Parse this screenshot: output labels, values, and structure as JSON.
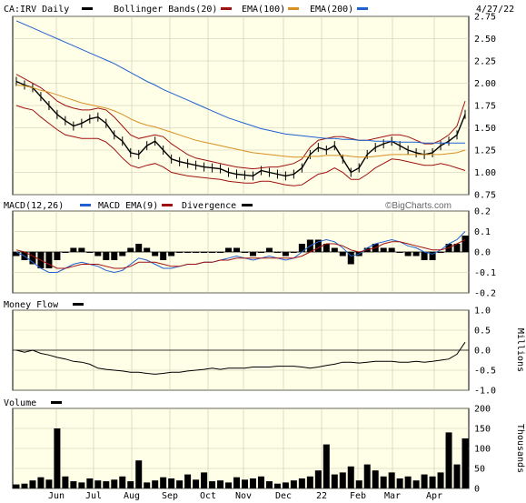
{
  "header": {
    "symbol_label": "CA:IRV Daily",
    "bb_label": "Bollinger Bands(20)",
    "ema100_label": "EMA(100)",
    "ema200_label": "EMA(200)",
    "date": "4/27/22"
  },
  "macd_header": {
    "macd_label": "MACD(12,26)",
    "ema_label": "MACD EMA(9)",
    "div_label": "Divergence"
  },
  "watermark": "©BigCharts.com",
  "mf_header": {
    "label": "Money Flow"
  },
  "mf_unit": "Millions",
  "vol_header": {
    "label": "Volume"
  },
  "vol_unit": "Thousands",
  "x_labels": [
    "Jun",
    "Jul",
    "Aug",
    "Sep",
    "Oct",
    "Nov",
    "Dec",
    "22",
    "Feb",
    "Mar",
    "Apr"
  ],
  "colors": {
    "bg": "#ffffe7",
    "price": "#000000",
    "bollinger": "#a01010",
    "ema100": "#d89020",
    "ema200": "#2060d0",
    "macd": "#2060d0",
    "macd_ema": "#a01010",
    "grid": "#c8c8b0"
  },
  "chart_data": [
    {
      "type": "line",
      "title": "CA:IRV Daily",
      "series": [
        {
          "name": "CA:IRV Daily",
          "values": [
            2.02,
            1.98,
            1.95,
            1.85,
            1.75,
            1.65,
            1.58,
            1.52,
            1.55,
            1.6,
            1.62,
            1.55,
            1.42,
            1.35,
            1.22,
            1.2,
            1.3,
            1.35,
            1.25,
            1.15,
            1.12,
            1.1,
            1.08,
            1.06,
            1.05,
            1.04,
            1.0,
            0.98,
            0.97,
            0.96,
            1.02,
            1.0,
            0.98,
            0.96,
            0.98,
            1.05,
            1.2,
            1.28,
            1.25,
            1.3,
            1.15,
            1.0,
            1.05,
            1.2,
            1.28,
            1.32,
            1.35,
            1.3,
            1.25,
            1.22,
            1.2,
            1.22,
            1.3,
            1.35,
            1.42,
            1.65
          ]
        },
        {
          "name": "Bollinger Bands(20) upper",
          "values": [
            2.1,
            2.05,
            2.0,
            1.95,
            1.88,
            1.8,
            1.75,
            1.72,
            1.7,
            1.7,
            1.72,
            1.7,
            1.62,
            1.52,
            1.42,
            1.38,
            1.4,
            1.42,
            1.4,
            1.32,
            1.26,
            1.2,
            1.16,
            1.14,
            1.12,
            1.1,
            1.08,
            1.06,
            1.05,
            1.04,
            1.05,
            1.06,
            1.06,
            1.08,
            1.1,
            1.15,
            1.28,
            1.36,
            1.38,
            1.4,
            1.4,
            1.38,
            1.36,
            1.36,
            1.38,
            1.4,
            1.42,
            1.42,
            1.4,
            1.36,
            1.32,
            1.32,
            1.36,
            1.42,
            1.52,
            1.8
          ]
        },
        {
          "name": "Bollinger Bands(20) lower",
          "values": [
            1.75,
            1.72,
            1.7,
            1.62,
            1.55,
            1.48,
            1.42,
            1.4,
            1.38,
            1.38,
            1.38,
            1.34,
            1.26,
            1.16,
            1.08,
            1.05,
            1.08,
            1.1,
            1.06,
            1.0,
            0.98,
            0.96,
            0.95,
            0.94,
            0.93,
            0.92,
            0.9,
            0.89,
            0.88,
            0.88,
            0.9,
            0.9,
            0.88,
            0.86,
            0.85,
            0.86,
            0.92,
            0.98,
            1.0,
            1.05,
            1.0,
            0.92,
            0.92,
            0.98,
            1.05,
            1.1,
            1.15,
            1.14,
            1.12,
            1.1,
            1.08,
            1.08,
            1.1,
            1.08,
            1.05,
            1.02
          ]
        },
        {
          "name": "EMA(100)",
          "values": [
            1.98,
            1.97,
            1.95,
            1.92,
            1.9,
            1.87,
            1.84,
            1.81,
            1.78,
            1.76,
            1.74,
            1.72,
            1.69,
            1.65,
            1.6,
            1.56,
            1.53,
            1.51,
            1.48,
            1.45,
            1.42,
            1.39,
            1.36,
            1.34,
            1.32,
            1.3,
            1.28,
            1.26,
            1.24,
            1.22,
            1.21,
            1.2,
            1.19,
            1.18,
            1.17,
            1.17,
            1.18,
            1.18,
            1.19,
            1.19,
            1.19,
            1.18,
            1.17,
            1.17,
            1.18,
            1.19,
            1.2,
            1.2,
            1.2,
            1.2,
            1.2,
            1.2,
            1.2,
            1.21,
            1.22,
            1.25
          ]
        },
        {
          "name": "EMA(200)",
          "values": [
            2.7,
            2.66,
            2.62,
            2.58,
            2.54,
            2.5,
            2.46,
            2.42,
            2.38,
            2.34,
            2.3,
            2.26,
            2.22,
            2.17,
            2.12,
            2.07,
            2.02,
            1.98,
            1.93,
            1.89,
            1.85,
            1.81,
            1.77,
            1.73,
            1.69,
            1.65,
            1.61,
            1.58,
            1.55,
            1.52,
            1.49,
            1.47,
            1.45,
            1.43,
            1.42,
            1.41,
            1.4,
            1.39,
            1.38,
            1.38,
            1.37,
            1.37,
            1.36,
            1.36,
            1.35,
            1.35,
            1.35,
            1.34,
            1.34,
            1.34,
            1.33,
            1.33,
            1.33,
            1.33,
            1.33,
            1.33
          ]
        }
      ],
      "ylim": [
        0.75,
        2.75
      ],
      "yticks": [
        0.75,
        1.0,
        1.25,
        1.5,
        1.75,
        2.0,
        2.25,
        2.5,
        2.75
      ],
      "grid": true
    },
    {
      "type": "line",
      "series": [
        {
          "name": "MACD(12,26)",
          "values": [
            0.0,
            -0.02,
            -0.05,
            -0.08,
            -0.1,
            -0.1,
            -0.08,
            -0.06,
            -0.05,
            -0.06,
            -0.07,
            -0.09,
            -0.1,
            -0.09,
            -0.06,
            -0.03,
            -0.04,
            -0.06,
            -0.08,
            -0.08,
            -0.07,
            -0.06,
            -0.06,
            -0.05,
            -0.05,
            -0.04,
            -0.03,
            -0.02,
            -0.03,
            -0.04,
            -0.03,
            -0.02,
            -0.03,
            -0.04,
            -0.03,
            0.0,
            0.03,
            0.05,
            0.06,
            0.05,
            0.02,
            -0.02,
            -0.01,
            0.02,
            0.04,
            0.05,
            0.06,
            0.05,
            0.03,
            0.02,
            0.0,
            -0.01,
            0.01,
            0.04,
            0.06,
            0.1
          ]
        },
        {
          "name": "MACD EMA(9)",
          "values": [
            0.01,
            0.0,
            -0.02,
            -0.04,
            -0.06,
            -0.08,
            -0.08,
            -0.07,
            -0.06,
            -0.06,
            -0.06,
            -0.07,
            -0.08,
            -0.08,
            -0.07,
            -0.05,
            -0.05,
            -0.05,
            -0.06,
            -0.07,
            -0.07,
            -0.06,
            -0.06,
            -0.05,
            -0.05,
            -0.04,
            -0.04,
            -0.03,
            -0.03,
            -0.03,
            -0.03,
            -0.03,
            -0.03,
            -0.03,
            -0.03,
            -0.02,
            0.0,
            0.02,
            0.04,
            0.04,
            0.03,
            0.01,
            0.0,
            0.01,
            0.02,
            0.04,
            0.05,
            0.05,
            0.04,
            0.03,
            0.02,
            0.01,
            0.01,
            0.02,
            0.04,
            0.06
          ]
        }
      ],
      "ylim": [
        -0.2,
        0.2
      ],
      "yticks": [
        -0.2,
        -0.1,
        0.0,
        0.1,
        0.2
      ]
    },
    {
      "type": "line",
      "series": [
        {
          "name": "Money Flow",
          "values": [
            0.0,
            -0.05,
            0.0,
            -0.08,
            -0.12,
            -0.18,
            -0.22,
            -0.28,
            -0.3,
            -0.35,
            -0.45,
            -0.48,
            -0.5,
            -0.52,
            -0.55,
            -0.55,
            -0.58,
            -0.6,
            -0.58,
            -0.55,
            -0.55,
            -0.52,
            -0.5,
            -0.48,
            -0.45,
            -0.48,
            -0.45,
            -0.45,
            -0.45,
            -0.42,
            -0.42,
            -0.42,
            -0.4,
            -0.4,
            -0.4,
            -0.42,
            -0.45,
            -0.42,
            -0.38,
            -0.35,
            -0.3,
            -0.3,
            -0.32,
            -0.3,
            -0.28,
            -0.28,
            -0.28,
            -0.3,
            -0.3,
            -0.28,
            -0.3,
            -0.28,
            -0.25,
            -0.22,
            -0.1,
            0.2
          ]
        }
      ],
      "ylim": [
        -1.0,
        1.0
      ],
      "yticks": [
        -1.0,
        -0.5,
        0.0,
        0.5,
        1.0
      ]
    },
    {
      "type": "bar",
      "series": [
        {
          "name": "Volume",
          "values": [
            10,
            12,
            20,
            28,
            22,
            150,
            30,
            18,
            15,
            25,
            20,
            18,
            22,
            30,
            18,
            70,
            15,
            20,
            28,
            25,
            20,
            35,
            22,
            40,
            18,
            20,
            15,
            28,
            22,
            25,
            30,
            18,
            12,
            15,
            20,
            25,
            30,
            45,
            110,
            35,
            40,
            55,
            20,
            60,
            45,
            30,
            40,
            25,
            30,
            20,
            35,
            30,
            40,
            140,
            60,
            125
          ]
        }
      ],
      "ylim": [
        0,
        200
      ],
      "yticks": [
        0,
        50,
        100,
        150,
        200
      ]
    }
  ]
}
